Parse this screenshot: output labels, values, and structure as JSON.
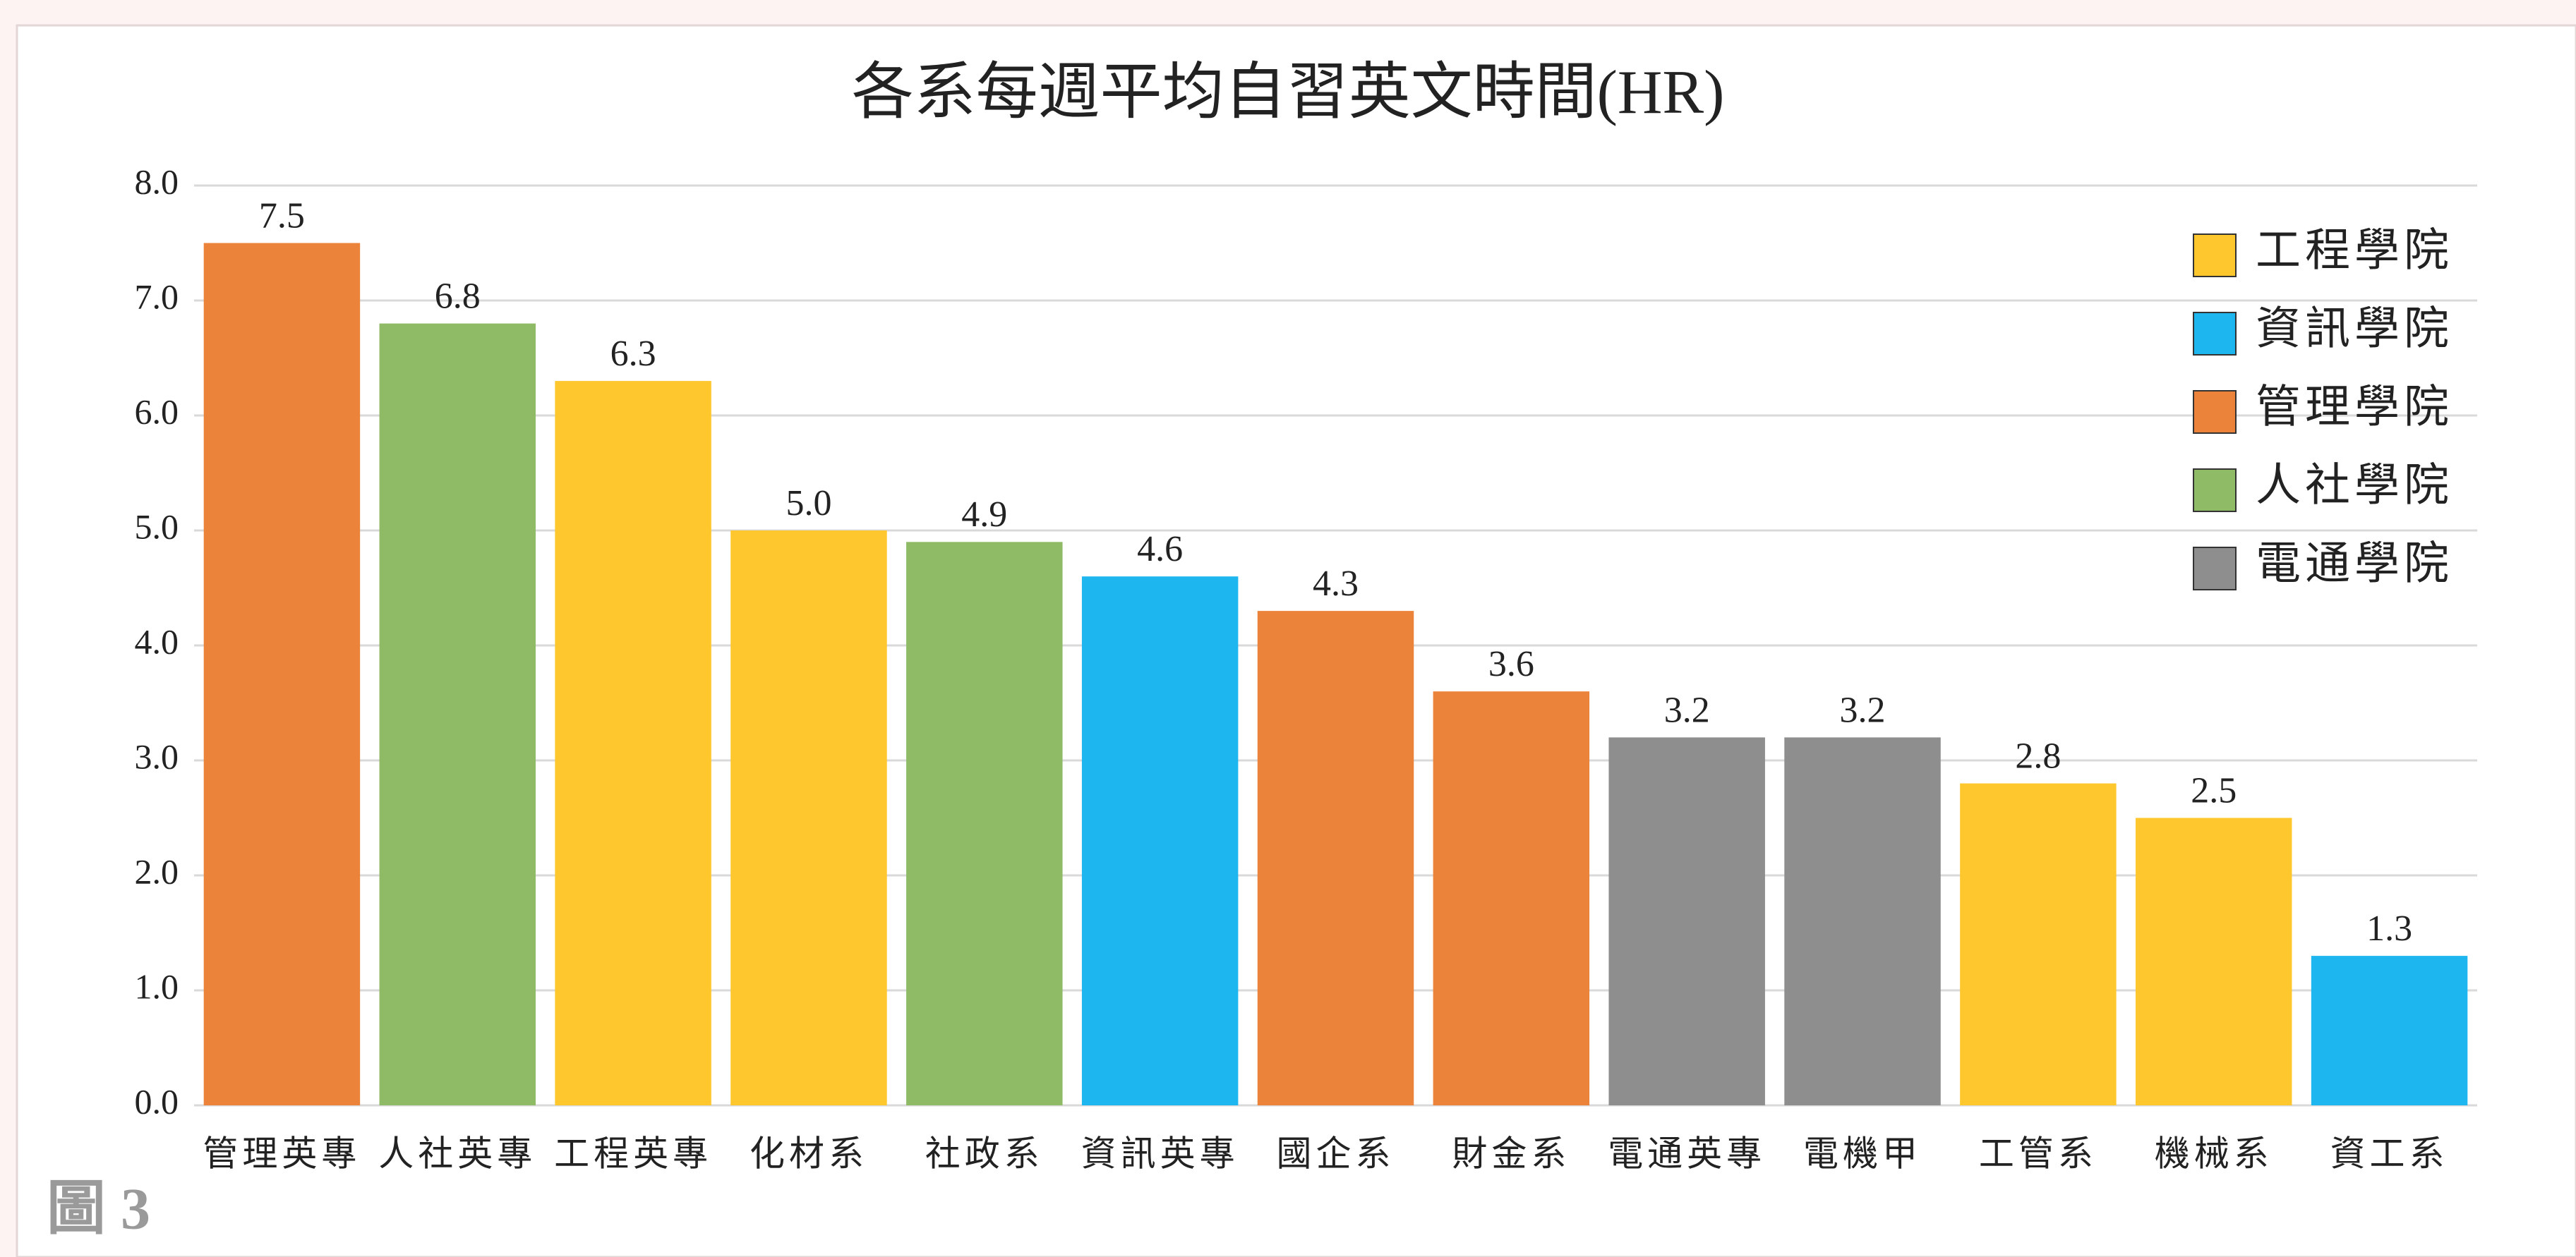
{
  "chart_data": {
    "type": "bar",
    "title": "各系每週平均自習英文時間(HR)",
    "categories": [
      "管理英專",
      "人社英專",
      "工程英專",
      "化材系",
      "社政系",
      "資訊英專",
      "國企系",
      "財金系",
      "電通英專",
      "電機甲",
      "工管系",
      "機械系",
      "資工系"
    ],
    "series": [
      {
        "name": "工程學院",
        "color": "#fec72e",
        "values": [
          null,
          null,
          6.3,
          5.0,
          null,
          null,
          null,
          null,
          null,
          null,
          2.8,
          2.5,
          null
        ],
        "value_labels": [
          null,
          null,
          "6.3",
          "5.0",
          null,
          null,
          null,
          null,
          null,
          null,
          "2.8",
          "2.5",
          null
        ]
      },
      {
        "name": "資訊學院",
        "color": "#1eb6ee",
        "values": [
          null,
          null,
          null,
          null,
          null,
          4.6,
          null,
          null,
          null,
          null,
          null,
          null,
          1.3
        ],
        "value_labels": [
          null,
          null,
          null,
          null,
          null,
          "4.6",
          null,
          null,
          null,
          null,
          null,
          null,
          "1.3"
        ]
      },
      {
        "name": "管理學院",
        "color": "#ec833a",
        "values": [
          7.5,
          null,
          null,
          null,
          null,
          null,
          4.3,
          3.6,
          null,
          null,
          null,
          null,
          null
        ],
        "value_labels": [
          "7.5",
          null,
          null,
          null,
          null,
          null,
          "4.3",
          "3.6",
          null,
          null,
          null,
          null,
          null
        ]
      },
      {
        "name": "人社學院",
        "color": "#8fbb67",
        "values": [
          null,
          6.8,
          null,
          null,
          4.9,
          null,
          null,
          null,
          null,
          null,
          null,
          null,
          null
        ],
        "value_labels": [
          null,
          "6.8",
          null,
          null,
          "4.9",
          null,
          null,
          null,
          null,
          null,
          null,
          null,
          null
        ]
      },
      {
        "name": "電通學院",
        "color": "#8e8e8e",
        "values": [
          null,
          null,
          null,
          null,
          null,
          null,
          null,
          null,
          3.2,
          3.2,
          null,
          null,
          null
        ],
        "value_labels": [
          null,
          null,
          null,
          null,
          null,
          null,
          null,
          null,
          "3.2",
          "3.2",
          null,
          null,
          null
        ]
      }
    ],
    "ylim": [
      0,
      8
    ],
    "yticks": [
      {
        "value": 0,
        "label": "0.0"
      },
      {
        "value": 1,
        "label": "1.0"
      },
      {
        "value": 2,
        "label": "2.0"
      },
      {
        "value": 3,
        "label": "3.0"
      },
      {
        "value": 4,
        "label": "4.0"
      },
      {
        "value": 5,
        "label": "5.0"
      },
      {
        "value": 6,
        "label": "6.0"
      },
      {
        "value": 7,
        "label": "7.0"
      },
      {
        "value": 8,
        "label": "8.0"
      }
    ],
    "grid": true,
    "legend": "top-right"
  },
  "caption": "圖 3"
}
